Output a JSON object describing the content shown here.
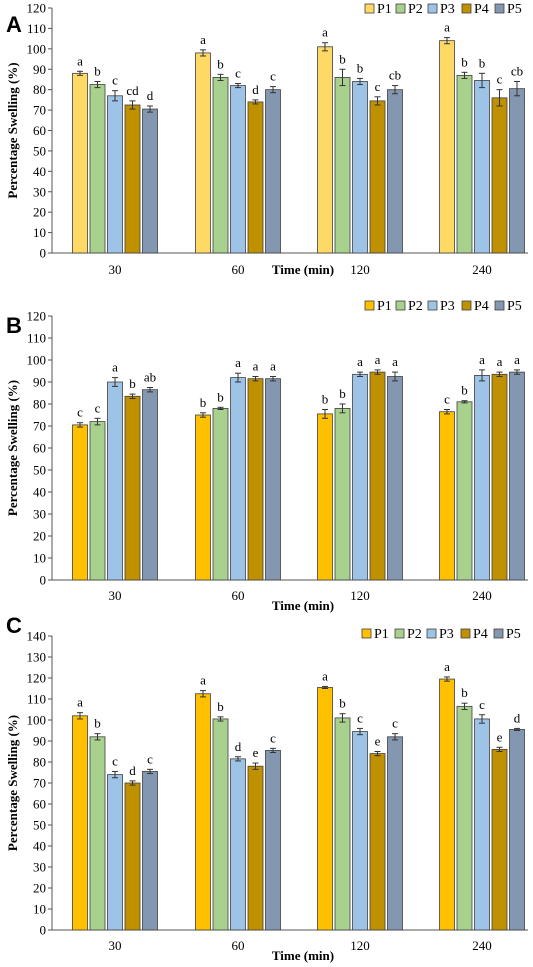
{
  "colors": {
    "panelA": [
      "#FFD966",
      "#A9D18E",
      "#9DC3E6",
      "#BF9000",
      "#8497B0"
    ],
    "panelBC": [
      "#FFC000",
      "#A9D18E",
      "#9DC3E6",
      "#BF9000",
      "#8497B0"
    ]
  },
  "chart_data": [
    {
      "type": "bar",
      "panel": "A",
      "title": "",
      "xlabel": "Time (min)",
      "ylabel": "Percentage Swelling (%)",
      "ylim": [
        0,
        120
      ],
      "ytick_step": 10,
      "legend_position": "top-right",
      "categories": [
        "30",
        "60",
        "120",
        "240"
      ],
      "series": [
        {
          "name": "P1",
          "values": [
            88,
            98,
            101,
            104
          ],
          "errors": [
            1,
            1.5,
            2,
            1.5
          ],
          "labels": [
            "a",
            "a",
            "a",
            "a"
          ]
        },
        {
          "name": "P2",
          "values": [
            82.5,
            86,
            86,
            87
          ],
          "errors": [
            1.5,
            1.5,
            4,
            1.5
          ],
          "labels": [
            "b",
            "b",
            "b",
            "b"
          ]
        },
        {
          "name": "P3",
          "values": [
            77,
            82,
            84,
            84.5
          ],
          "errors": [
            2.5,
            1,
            1.5,
            3.5
          ],
          "labels": [
            "c",
            "c",
            "b",
            "b"
          ]
        },
        {
          "name": "P4",
          "values": [
            72.5,
            74,
            74.5,
            76
          ],
          "errors": [
            2,
            1,
            2,
            4
          ],
          "labels": [
            "cd",
            "d",
            "c",
            "c"
          ]
        },
        {
          "name": "P5",
          "values": [
            70.5,
            80,
            80,
            80.5
          ],
          "errors": [
            1.5,
            1.5,
            2,
            3.5
          ],
          "labels": [
            "d",
            "c",
            "cb",
            "cb"
          ]
        }
      ]
    },
    {
      "type": "bar",
      "panel": "B",
      "title": "",
      "xlabel": "Time (min)",
      "ylabel": "Percentage Swelling (%)",
      "ylim": [
        0,
        120
      ],
      "ytick_step": 10,
      "legend_position": "top-right",
      "categories": [
        "30",
        "60",
        "120",
        "240"
      ],
      "series": [
        {
          "name": "P1",
          "values": [
            70.5,
            75,
            75.5,
            76.5
          ],
          "errors": [
            1,
            1,
            2,
            1
          ],
          "labels": [
            "c",
            "b",
            "b",
            "c"
          ]
        },
        {
          "name": "P2",
          "values": [
            72,
            78,
            78,
            81
          ],
          "errors": [
            1.5,
            0.5,
            2,
            0.5
          ],
          "labels": [
            "c",
            "b",
            "b",
            "b"
          ]
        },
        {
          "name": "P3",
          "values": [
            90,
            92,
            93.5,
            93
          ],
          "errors": [
            2,
            2,
            1,
            2.5
          ],
          "labels": [
            "a",
            "a",
            "a",
            "a"
          ]
        },
        {
          "name": "P4",
          "values": [
            83.5,
            91.5,
            94.5,
            93.5
          ],
          "errors": [
            1,
            1,
            1,
            1
          ],
          "labels": [
            "b",
            "a",
            "a",
            "a"
          ]
        },
        {
          "name": "P5",
          "values": [
            86.5,
            91.5,
            92.5,
            94.5
          ],
          "errors": [
            1,
            1,
            2,
            1
          ],
          "labels": [
            "ab",
            "a",
            "a",
            "a"
          ]
        }
      ]
    },
    {
      "type": "bar",
      "panel": "C",
      "title": "",
      "xlabel": "Time (min)",
      "ylabel": "Percentage Swelling (%)",
      "ylim": [
        0,
        140
      ],
      "ytick_step": 10,
      "legend_position": "top-right",
      "categories": [
        "30",
        "60",
        "120",
        "240"
      ],
      "series": [
        {
          "name": "P1",
          "values": [
            102,
            112.5,
            115.5,
            119.5
          ],
          "errors": [
            1.5,
            1.5,
            0.5,
            1
          ],
          "labels": [
            "a",
            "a",
            "a",
            "a"
          ]
        },
        {
          "name": "P2",
          "values": [
            92,
            100.5,
            101,
            106.5
          ],
          "errors": [
            1.5,
            1,
            2,
            1.5
          ],
          "labels": [
            "b",
            "b",
            "b",
            "b"
          ]
        },
        {
          "name": "P3",
          "values": [
            74,
            81.5,
            94.5,
            100.5
          ],
          "errors": [
            1.5,
            1,
            1.5,
            2
          ],
          "labels": [
            "c",
            "d",
            "c",
            "c"
          ]
        },
        {
          "name": "P4",
          "values": [
            70,
            78,
            84,
            86
          ],
          "errors": [
            1,
            1.5,
            1,
            1
          ],
          "labels": [
            "d",
            "e",
            "e",
            "e"
          ]
        },
        {
          "name": "P5",
          "values": [
            75.5,
            85.5,
            92,
            95.5
          ],
          "errors": [
            1,
            1,
            1.5,
            0.5
          ],
          "labels": [
            "c",
            "c",
            "c",
            "d"
          ]
        }
      ]
    }
  ]
}
